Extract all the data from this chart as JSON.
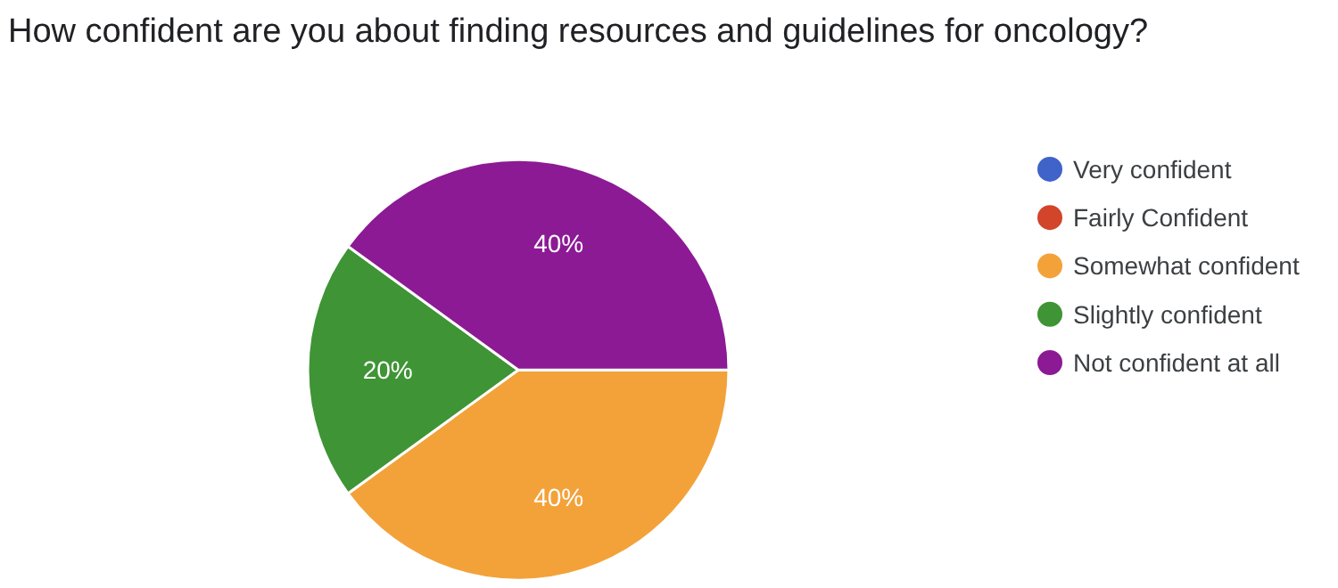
{
  "chart_data": {
    "type": "pie",
    "title": "How confident are you about finding resources and guidelines for oncology?",
    "categories": [
      "Very confident",
      "Fairly Confident",
      "Somewhat confident",
      "Slightly confident",
      "Not confident at all"
    ],
    "values": [
      0,
      0,
      40,
      20,
      40
    ],
    "colors": [
      "#4063c9",
      "#d2452b",
      "#f3a23a",
      "#3f9435",
      "#8c1a94"
    ],
    "value_labels": [
      null,
      null,
      "40%",
      "20%",
      "40%"
    ],
    "legend": "right"
  }
}
